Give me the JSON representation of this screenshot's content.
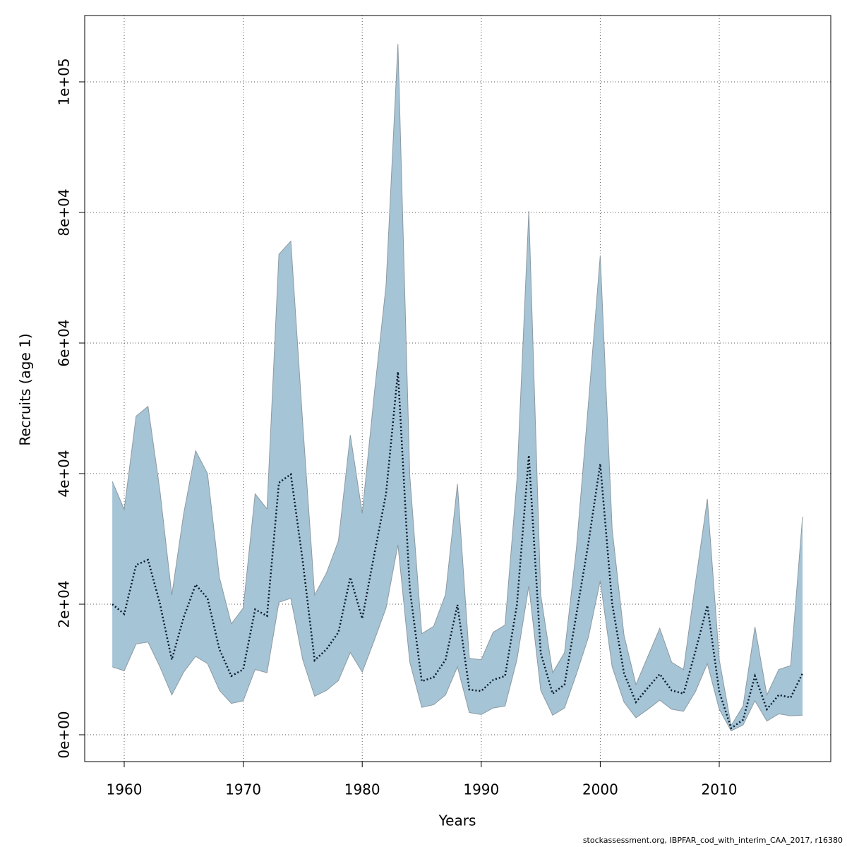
{
  "chart_data": {
    "type": "line",
    "xlabel": "Years",
    "ylabel": "Recruits (age 1)",
    "footnote": "stockassessment.org, IBPFAR_cod_with_interim_CAA_2017, r16380",
    "x": [
      1959,
      1960,
      1961,
      1962,
      1963,
      1964,
      1965,
      1966,
      1967,
      1968,
      1969,
      1970,
      1971,
      1972,
      1973,
      1974,
      1975,
      1976,
      1977,
      1978,
      1979,
      1980,
      1981,
      1982,
      1983,
      1984,
      1985,
      1986,
      1987,
      1988,
      1989,
      1990,
      1991,
      1992,
      1993,
      1994,
      1995,
      1996,
      1997,
      1998,
      1999,
      2000,
      2001,
      2002,
      2003,
      2004,
      2005,
      2006,
      2007,
      2008,
      2009,
      2010,
      2011,
      2012,
      2013,
      2014,
      2015,
      2016,
      2017
    ],
    "values": [
      20000,
      18500,
      26000,
      26800,
      20100,
      11500,
      18000,
      23000,
      20900,
      13100,
      9000,
      10000,
      19200,
      18200,
      38600,
      39900,
      26600,
      11400,
      13100,
      15700,
      24100,
      17800,
      27500,
      36900,
      55600,
      22300,
      8200,
      8800,
      11500,
      19900,
      6900,
      6700,
      8400,
      9000,
      19900,
      42800,
      12500,
      6300,
      7700,
      18500,
      29300,
      41500,
      20100,
      9400,
      5000,
      7200,
      9300,
      6800,
      6300,
      12800,
      19800,
      6600,
      1000,
      2300,
      9000,
      3900,
      6100,
      5700,
      9400
    ],
    "upper": [
      38800,
      34500,
      48800,
      50300,
      37400,
      21400,
      33900,
      43500,
      40000,
      24100,
      17000,
      19400,
      36900,
      34600,
      73600,
      75600,
      47700,
      21400,
      24800,
      29700,
      45900,
      33900,
      52000,
      68800,
      105800,
      39600,
      15500,
      16600,
      21500,
      38400,
      11700,
      11500,
      15700,
      16800,
      39000,
      80200,
      21400,
      9500,
      12600,
      28600,
      50600,
      73400,
      31500,
      15200,
      7700,
      12000,
      16300,
      11100,
      10000,
      23300,
      36100,
      11500,
      1400,
      4400,
      16500,
      6100,
      10000,
      10600,
      33400
    ],
    "lower": [
      10400,
      9800,
      13900,
      14200,
      10400,
      6100,
      9600,
      12000,
      10900,
      6800,
      4800,
      5200,
      10000,
      9500,
      20300,
      20900,
      11500,
      5900,
      6800,
      8300,
      12600,
      9600,
      14400,
      19400,
      29100,
      11100,
      4200,
      4600,
      6100,
      10400,
      3400,
      3100,
      4100,
      4400,
      11500,
      22800,
      6800,
      3000,
      4100,
      9300,
      14900,
      23600,
      10400,
      5000,
      2600,
      3900,
      5300,
      3900,
      3600,
      6600,
      10900,
      3900,
      600,
      1500,
      5200,
      2100,
      3200,
      2900,
      3000
    ],
    "line_color": "#06192b",
    "band_color": "#a5c4d5",
    "band_edge_color": "#8c9aa3",
    "xlim": [
      1956.68,
      2019.37
    ],
    "ylim": [
      -4108,
      110160
    ],
    "xticks": [
      1960,
      1970,
      1980,
      1990,
      2000,
      2010
    ],
    "yticks": [
      {
        "value": 0,
        "label": "0e+00"
      },
      {
        "value": 20000,
        "label": "2e+04"
      },
      {
        "value": 40000,
        "label": "4e+04"
      },
      {
        "value": 60000,
        "label": "6e+04"
      },
      {
        "value": 80000,
        "label": "8e+04"
      },
      {
        "value": 100000,
        "label": "1e+05"
      }
    ],
    "grid": true
  }
}
